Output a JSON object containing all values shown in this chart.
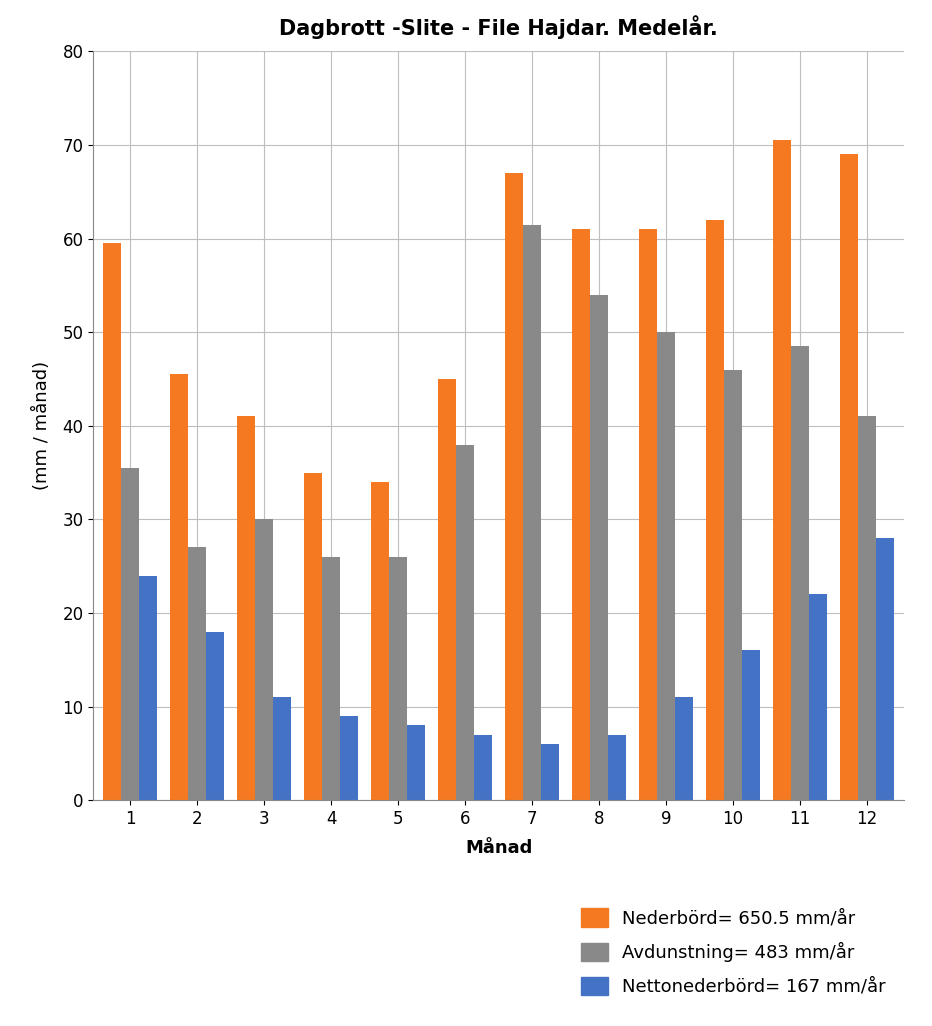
{
  "title": "Dagbrott -Slite - File Hajdar. Medelår.",
  "xlabel": "Månad",
  "ylabel": "(mm / månad)",
  "months": [
    1,
    2,
    3,
    4,
    5,
    6,
    7,
    8,
    9,
    10,
    11,
    12
  ],
  "nederbord": [
    59.5,
    45.5,
    41,
    35,
    34,
    45,
    67,
    61,
    61,
    62,
    70.5,
    69
  ],
  "avdunstning": [
    35.5,
    27,
    30,
    26,
    26,
    38,
    61.5,
    54,
    50,
    46,
    48.5,
    41
  ],
  "nettonederbord": [
    24,
    18,
    11,
    9,
    8,
    7,
    6,
    7,
    11,
    16,
    22,
    28
  ],
  "nederbord_color": "#F47920",
  "avdunstning_color": "#898989",
  "nettonederbord_color": "#4472C4",
  "nederbord_label": "Nederbörd= 650.5 mm/år",
  "avdunstning_label": "Avdunstning= 483 mm/år",
  "nettonederbord_label": "Nettonederbörd= 167 mm/år",
  "ylim": [
    0,
    80
  ],
  "yticks": [
    0,
    10,
    20,
    30,
    40,
    50,
    60,
    70,
    80
  ],
  "background_color": "#FFFFFF",
  "grid_color": "#BEBEBE",
  "title_fontsize": 15,
  "axis_label_fontsize": 13,
  "tick_fontsize": 12,
  "legend_fontsize": 13,
  "bar_width": 0.27,
  "figsize": [
    9.32,
    10.26
  ],
  "dpi": 100
}
